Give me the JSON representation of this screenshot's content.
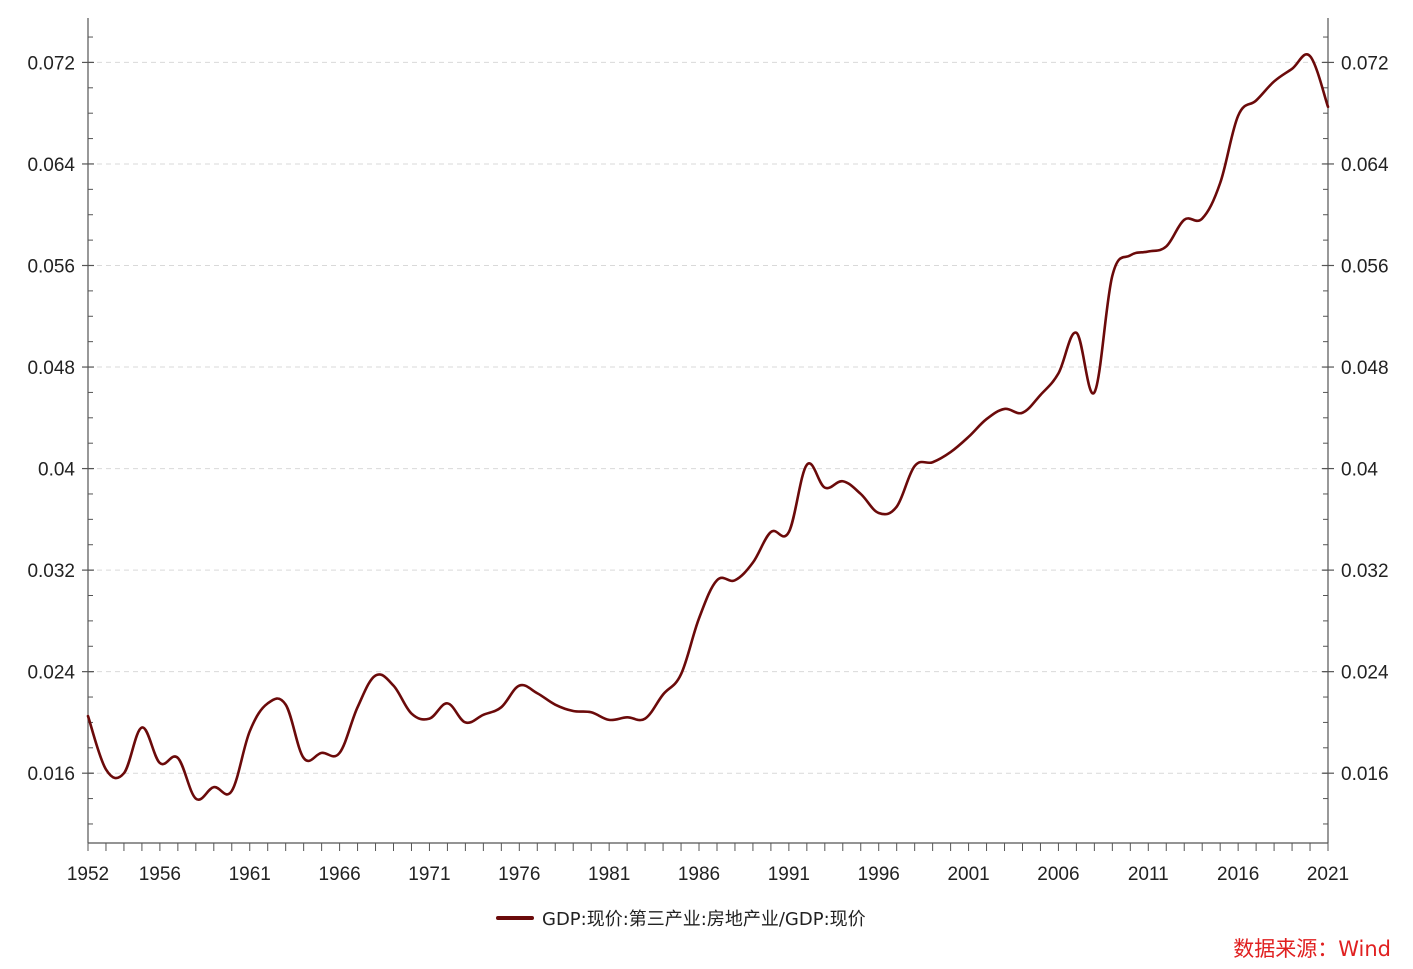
{
  "chart_data": {
    "type": "line",
    "x": [
      1952,
      1953,
      1954,
      1955,
      1956,
      1957,
      1958,
      1959,
      1960,
      1961,
      1962,
      1963,
      1964,
      1965,
      1966,
      1967,
      1968,
      1969,
      1970,
      1971,
      1972,
      1973,
      1974,
      1975,
      1976,
      1977,
      1978,
      1979,
      1980,
      1981,
      1982,
      1983,
      1984,
      1985,
      1986,
      1987,
      1988,
      1989,
      1990,
      1991,
      1992,
      1993,
      1994,
      1995,
      1996,
      1997,
      1998,
      1999,
      2000,
      2001,
      2002,
      2003,
      2004,
      2005,
      2006,
      2007,
      2008,
      2009,
      2010,
      2011,
      2012,
      2013,
      2014,
      2015,
      2016,
      2017,
      2018,
      2019,
      2020,
      2021
    ],
    "series": [
      {
        "name": "GDP:现价:第三产业:房地产业/GDP:现价",
        "values": [
          0.0205,
          0.0163,
          0.016,
          0.0196,
          0.0168,
          0.0172,
          0.014,
          0.0149,
          0.0146,
          0.0193,
          0.0215,
          0.0214,
          0.0172,
          0.0176,
          0.0176,
          0.0212,
          0.0237,
          0.0229,
          0.0207,
          0.0203,
          0.0215,
          0.02,
          0.0206,
          0.0212,
          0.0229,
          0.0223,
          0.0214,
          0.0209,
          0.0208,
          0.0202,
          0.0204,
          0.0203,
          0.0222,
          0.0238,
          0.0282,
          0.0312,
          0.0312,
          0.0326,
          0.035,
          0.035,
          0.0403,
          0.0385,
          0.039,
          0.038,
          0.0365,
          0.037,
          0.0402,
          0.0405,
          0.0413,
          0.0425,
          0.0439,
          0.0447,
          0.0444,
          0.0458,
          0.0475,
          0.0507,
          0.046,
          0.0552,
          0.0568,
          0.0571,
          0.0575,
          0.0596,
          0.0597,
          0.0625,
          0.0678,
          0.069,
          0.0705,
          0.0715,
          0.0725,
          0.0685
        ]
      }
    ],
    "x_ticks": [
      "1952",
      "1956",
      "1961",
      "1966",
      "1971",
      "1976",
      "1981",
      "1986",
      "1991",
      "1996",
      "2001",
      "2006",
      "2011",
      "2016",
      "2021"
    ],
    "y_ticks": [
      "0.016",
      "0.024",
      "0.032",
      "0.04",
      "0.048",
      "0.056",
      "0.064",
      "0.072"
    ],
    "ylim": [
      0.0105,
      0.0755
    ],
    "xlim": [
      1952,
      2021
    ],
    "grid": true,
    "legend_position": "bottom-center",
    "colors": {
      "line": "#6b0a0a",
      "axis": "#555555",
      "grid": "#d9d9d9",
      "source": "#e02020"
    }
  },
  "legend": {
    "label": "GDP:现价:第三产业:房地产业/GDP:现价"
  },
  "source": {
    "text": "数据来源：Wind"
  }
}
